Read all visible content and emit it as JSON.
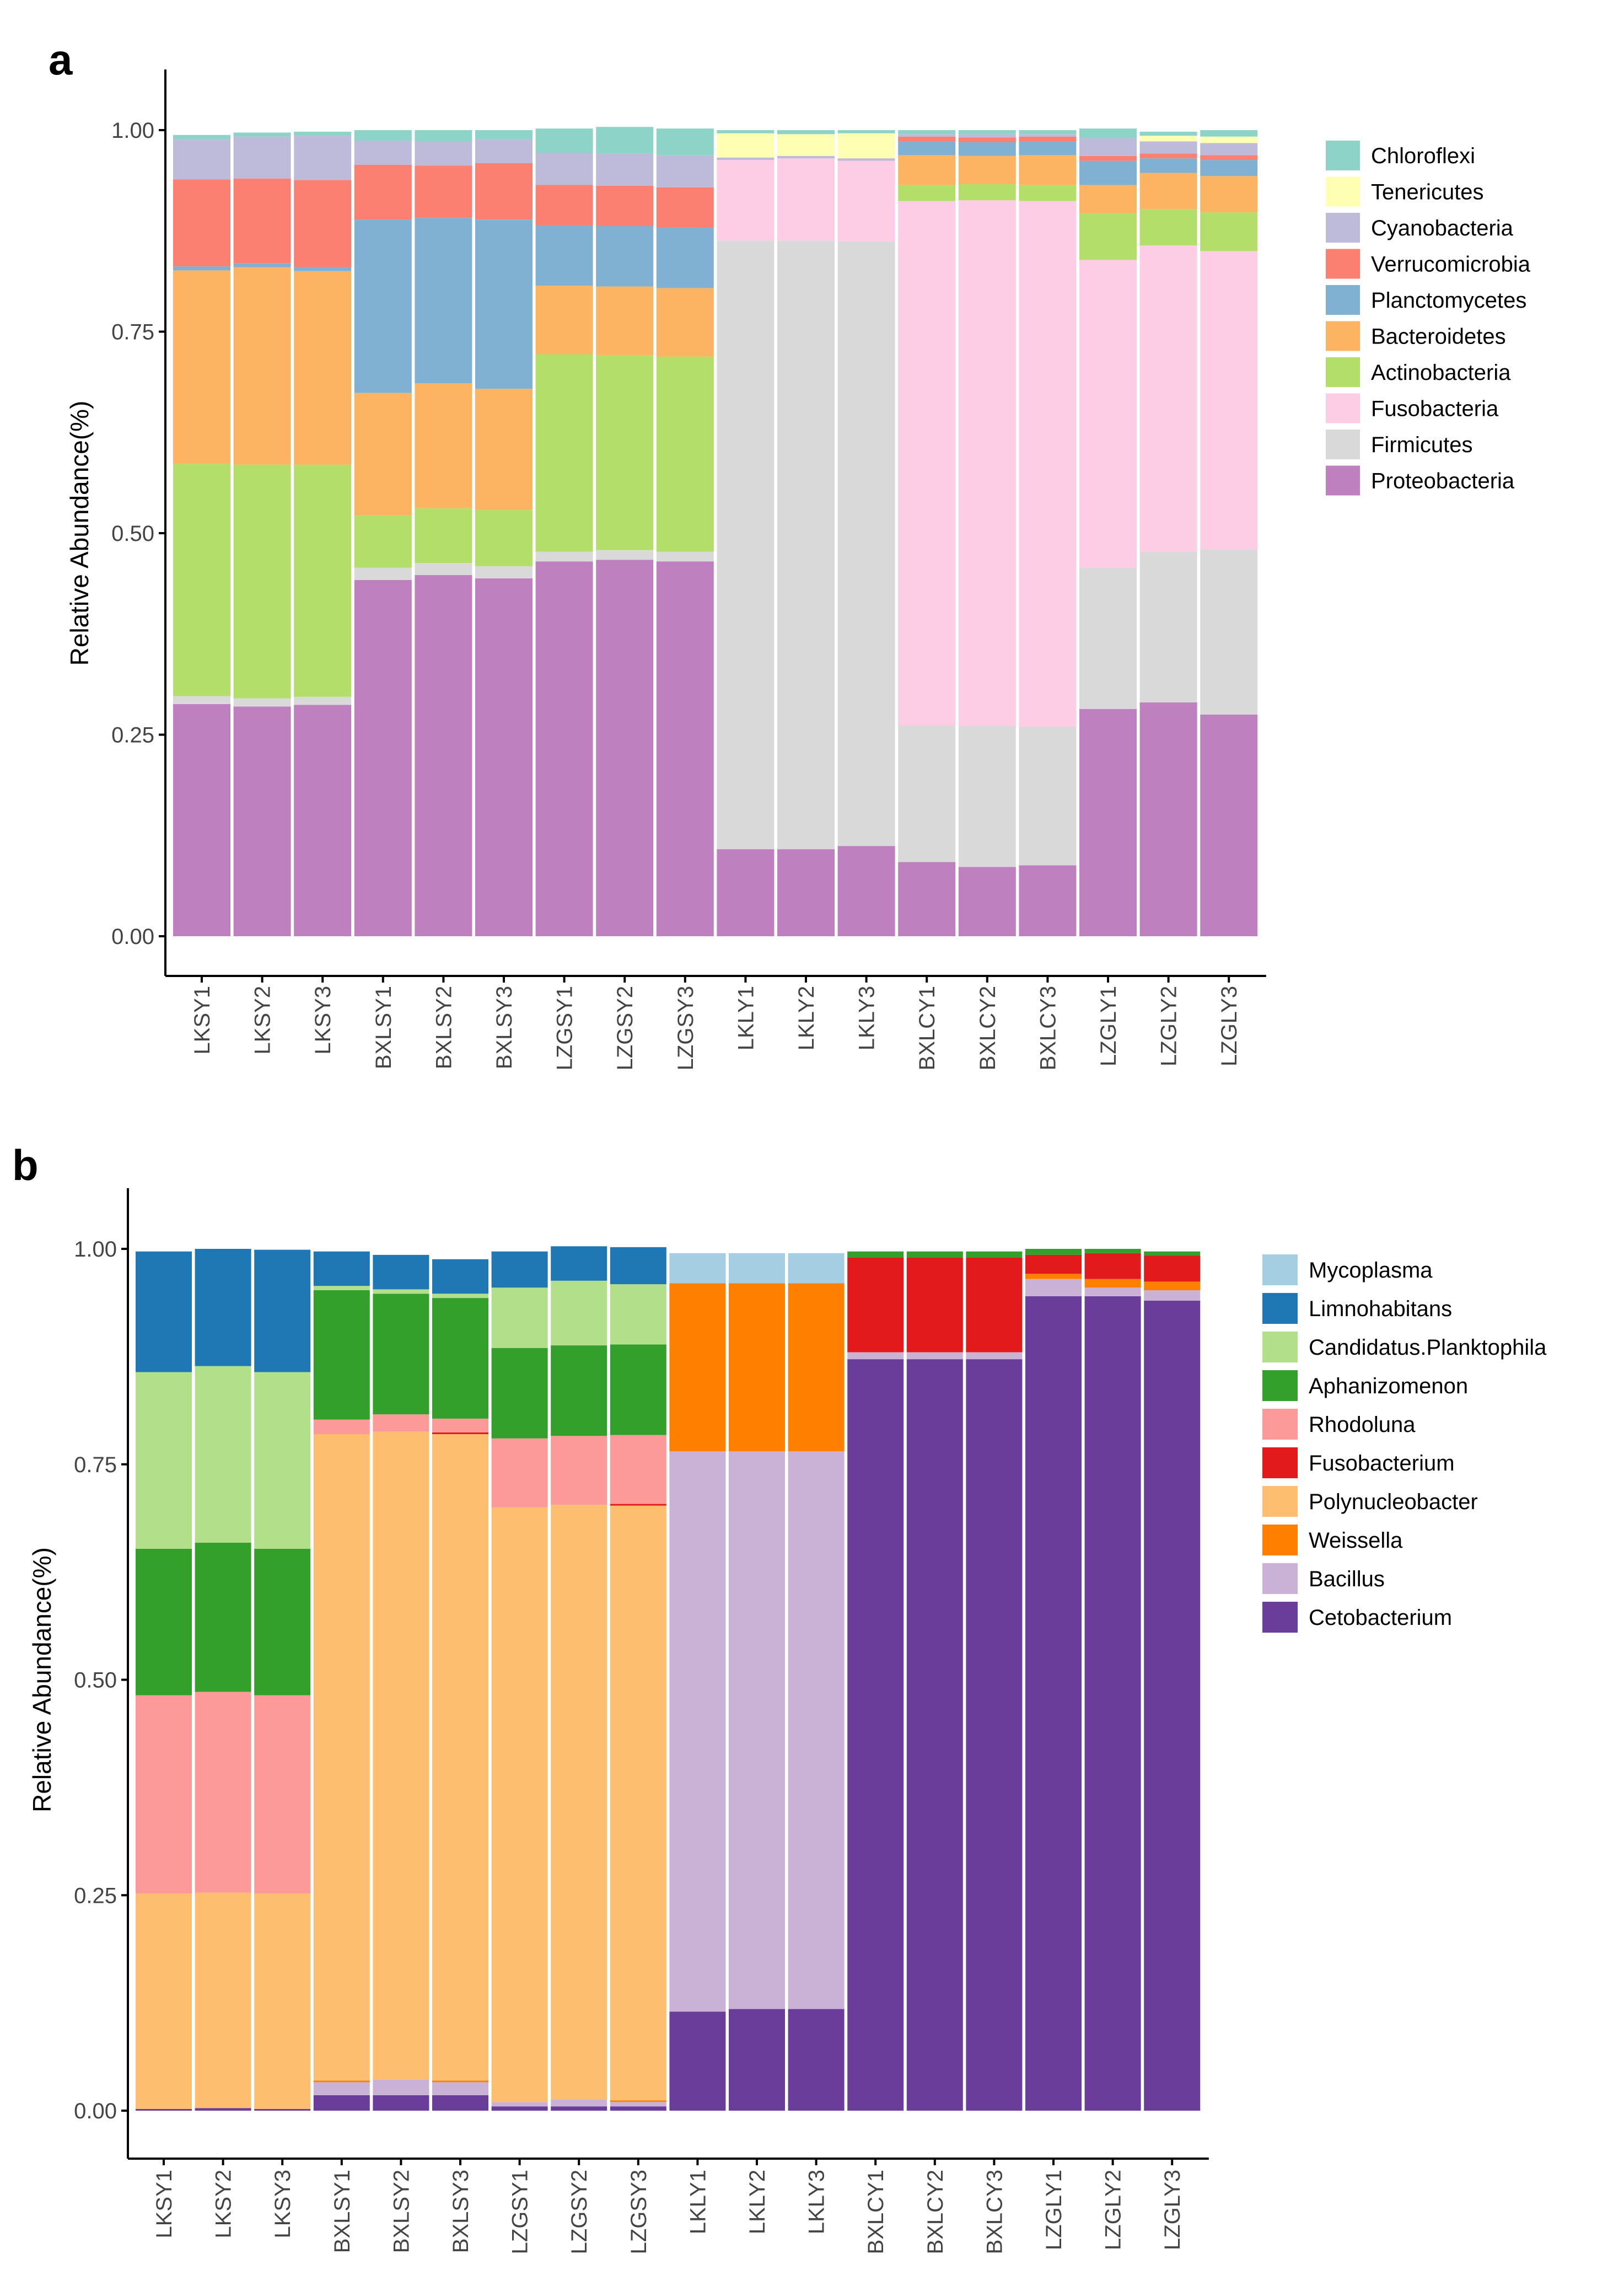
{
  "chart_data": [
    {
      "type": "bar",
      "stacked": true,
      "panel_label": "a",
      "ylabel": "Relative Abundance(%)",
      "xlabel": "",
      "ylim": [
        0,
        1
      ],
      "yticks": [
        "0.00",
        "0.25",
        "0.50",
        "0.75",
        "1.00"
      ],
      "legend_position": "right",
      "categories": [
        "LKSY1",
        "LKSY2",
        "LKSY3",
        "BXLSY1",
        "BXLSY2",
        "BXLSY3",
        "LZGSY1",
        "LZGSY2",
        "LZGSY3",
        "LKLY1",
        "LKLY2",
        "LKLY3",
        "BXLCY1",
        "BXLCY2",
        "BXLCY3",
        "LZGLY1",
        "LZGLY2",
        "LZGLY3"
      ],
      "series": [
        {
          "name": "Proteobacteria",
          "color": "#be80bf",
          "values": [
            0.288,
            0.285,
            0.287,
            0.442,
            0.448,
            0.444,
            0.465,
            0.467,
            0.465,
            0.108,
            0.108,
            0.112,
            0.092,
            0.086,
            0.088,
            0.282,
            0.29,
            0.275
          ]
        },
        {
          "name": "Firmicutes",
          "color": "#d9d9d9",
          "values": [
            0.01,
            0.01,
            0.01,
            0.015,
            0.015,
            0.015,
            0.012,
            0.012,
            0.012,
            0.755,
            0.755,
            0.75,
            0.17,
            0.175,
            0.172,
            0.175,
            0.187,
            0.205
          ]
        },
        {
          "name": "Fusobacteria",
          "color": "#fccde5",
          "values": [
            0.0,
            0.0,
            0.0,
            0.0,
            0.0,
            0.0,
            0.0,
            0.0,
            0.0,
            0.1,
            0.102,
            0.1,
            0.65,
            0.652,
            0.652,
            0.382,
            0.38,
            0.37
          ]
        },
        {
          "name": "Actinobacteria",
          "color": "#b3de69",
          "values": [
            0.288,
            0.29,
            0.288,
            0.065,
            0.068,
            0.07,
            0.245,
            0.242,
            0.242,
            0.0,
            0.0,
            0.0,
            0.02,
            0.02,
            0.02,
            0.058,
            0.045,
            0.048
          ]
        },
        {
          "name": "Bacteroidetes",
          "color": "#fdb462",
          "values": [
            0.24,
            0.245,
            0.24,
            0.152,
            0.155,
            0.15,
            0.085,
            0.085,
            0.085,
            0.0,
            0.0,
            0.0,
            0.037,
            0.035,
            0.037,
            0.035,
            0.045,
            0.045
          ]
        },
        {
          "name": "Planctomycetes",
          "color": "#80b1d3",
          "values": [
            0.005,
            0.005,
            0.005,
            0.215,
            0.205,
            0.21,
            0.075,
            0.075,
            0.075,
            0.0,
            0.0,
            0.0,
            0.017,
            0.017,
            0.017,
            0.03,
            0.018,
            0.02
          ]
        },
        {
          "name": "Verrucomicrobia",
          "color": "#fb8072",
          "values": [
            0.108,
            0.105,
            0.108,
            0.068,
            0.065,
            0.07,
            0.05,
            0.05,
            0.05,
            0.0,
            0.0,
            0.0,
            0.006,
            0.006,
            0.006,
            0.006,
            0.006,
            0.006
          ]
        },
        {
          "name": "Cyanobacteria",
          "color": "#bebada",
          "values": [
            0.05,
            0.052,
            0.055,
            0.03,
            0.03,
            0.03,
            0.04,
            0.04,
            0.04,
            0.003,
            0.003,
            0.003,
            0.003,
            0.004,
            0.003,
            0.022,
            0.015,
            0.015
          ]
        },
        {
          "name": "Tenericutes",
          "color": "#ffffb3",
          "values": [
            0.0,
            0.0,
            0.0,
            0.0,
            0.0,
            0.0,
            0.0,
            0.0,
            0.0,
            0.03,
            0.027,
            0.031,
            0.0,
            0.0,
            0.0,
            0.0,
            0.007,
            0.008
          ]
        },
        {
          "name": "Chloroflexi",
          "color": "#8dd3c7",
          "values": [
            0.005,
            0.005,
            0.005,
            0.013,
            0.014,
            0.011,
            0.03,
            0.033,
            0.033,
            0.004,
            0.005,
            0.004,
            0.005,
            0.005,
            0.005,
            0.012,
            0.005,
            0.008
          ]
        }
      ]
    },
    {
      "type": "bar",
      "stacked": true,
      "panel_label": "b",
      "ylabel": "Relative Abundance(%)",
      "xlabel": "",
      "ylim": [
        0,
        1
      ],
      "yticks": [
        "0.00",
        "0.25",
        "0.50",
        "0.75",
        "1.00"
      ],
      "legend_position": "right",
      "categories": [
        "LKSY1",
        "LKSY2",
        "LKSY3",
        "BXLSY1",
        "BXLSY2",
        "BXLSY3",
        "LZGSY1",
        "LZGSY2",
        "LZGSY3",
        "LKLY1",
        "LKLY2",
        "LKLY3",
        "BXLCY1",
        "BXLCY2",
        "BXLCY3",
        "LZGLY1",
        "LZGLY2",
        "LZGLY3"
      ],
      "series": [
        {
          "name": "Cetobacterium",
          "color": "#6a3d9a",
          "values": [
            0.002,
            0.003,
            0.002,
            0.018,
            0.018,
            0.018,
            0.005,
            0.005,
            0.005,
            0.115,
            0.118,
            0.118,
            0.872,
            0.872,
            0.872,
            0.945,
            0.945,
            0.94
          ]
        },
        {
          "name": "Bacillus",
          "color": "#cab2d6",
          "values": [
            0.0,
            0.0,
            0.0,
            0.015,
            0.018,
            0.015,
            0.005,
            0.008,
            0.005,
            0.65,
            0.647,
            0.647,
            0.008,
            0.008,
            0.008,
            0.02,
            0.01,
            0.012
          ]
        },
        {
          "name": "Weissella",
          "color": "#ff7f00",
          "values": [
            0.0,
            0.0,
            0.0,
            0.002,
            0.0,
            0.002,
            0.0,
            0.0,
            0.002,
            0.195,
            0.195,
            0.195,
            0.0,
            0.0,
            0.0,
            0.006,
            0.01,
            0.01
          ]
        },
        {
          "name": "Polynucleobacter",
          "color": "#fdbf6f",
          "values": [
            0.25,
            0.25,
            0.25,
            0.75,
            0.752,
            0.75,
            0.69,
            0.69,
            0.69,
            0.0,
            0.0,
            0.0,
            0.0,
            0.0,
            0.0,
            0.0,
            0.0,
            0.0
          ]
        },
        {
          "name": "Fusobacterium",
          "color": "#e31a1c",
          "values": [
            0.0,
            0.0,
            0.0,
            0.0,
            0.0,
            0.002,
            0.0,
            0.0,
            0.002,
            0.0,
            0.0,
            0.0,
            0.11,
            0.11,
            0.11,
            0.022,
            0.03,
            0.03
          ]
        },
        {
          "name": "Rhodoluna",
          "color": "#fb9a99",
          "values": [
            0.23,
            0.233,
            0.23,
            0.017,
            0.02,
            0.016,
            0.08,
            0.08,
            0.08,
            0.0,
            0.0,
            0.0,
            0.0,
            0.0,
            0.0,
            0.0,
            0.0,
            0.0
          ]
        },
        {
          "name": "Aphanizomenon",
          "color": "#33a02c",
          "values": [
            0.17,
            0.173,
            0.17,
            0.15,
            0.14,
            0.14,
            0.105,
            0.105,
            0.105,
            0.0,
            0.0,
            0.0,
            0.007,
            0.007,
            0.007,
            0.007,
            0.005,
            0.005
          ]
        },
        {
          "name": "Candidatus.Planktophila",
          "color": "#b2df8a",
          "values": [
            0.205,
            0.205,
            0.205,
            0.005,
            0.005,
            0.005,
            0.07,
            0.075,
            0.07,
            0.0,
            0.0,
            0.0,
            0.0,
            0.0,
            0.0,
            0.0,
            0.0,
            0.0
          ]
        },
        {
          "name": "Limnohabitans",
          "color": "#1f78b4",
          "values": [
            0.14,
            0.136,
            0.142,
            0.04,
            0.04,
            0.04,
            0.042,
            0.04,
            0.043,
            0.0,
            0.0,
            0.0,
            0.0,
            0.0,
            0.0,
            0.0,
            0.0,
            0.0
          ]
        },
        {
          "name": "Mycoplasma",
          "color": "#a6cee3",
          "values": [
            0.0,
            0.0,
            0.0,
            0.0,
            0.0,
            0.0,
            0.0,
            0.0,
            0.0,
            0.035,
            0.035,
            0.035,
            0.0,
            0.0,
            0.0,
            0.0,
            0.0,
            0.0
          ]
        }
      ]
    }
  ]
}
